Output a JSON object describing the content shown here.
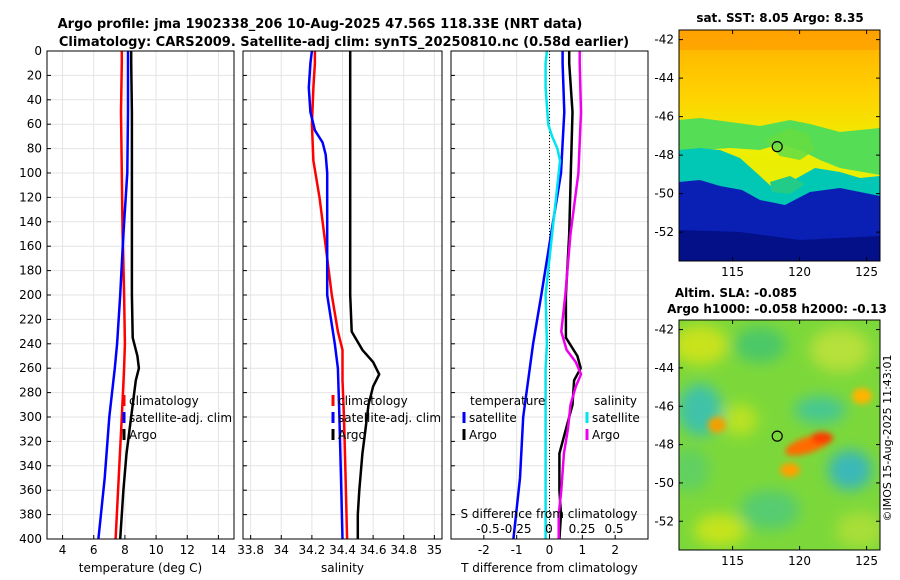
{
  "title_line1": "Argo profile: jma 1902338_206 10-Aug-2025 47.56S 118.33E (NRT data)",
  "title_line2": "Climatology: CARS2009. Satellite-adj clim: synTS_20250810.nc (0.58d earlier)",
  "watermark": "©IMOS 15-Aug-2025 11:43:01",
  "colors": {
    "climatology": "#ff0000",
    "satellite": "#0000ff",
    "argo": "#000000",
    "sal_satellite": "#00e5ee",
    "sal_argo": "#ee00ee"
  },
  "chart_data": [
    {
      "type": "line",
      "title": "",
      "xlabel": "temperature (deg C)",
      "ylabel": "",
      "xlim": [
        3,
        15
      ],
      "ylim": [
        400,
        0
      ],
      "xticks": [
        "4",
        "6",
        "8",
        "10",
        "12",
        "14"
      ],
      "yticks": [
        "0",
        "20",
        "40",
        "60",
        "80",
        "100",
        "120",
        "140",
        "160",
        "180",
        "200",
        "220",
        "240",
        "260",
        "280",
        "300",
        "320",
        "340",
        "360",
        "380",
        "400"
      ],
      "legend": [
        "climatology",
        "satellite-adj. clim",
        "Argo"
      ],
      "series": [
        {
          "name": "climatology",
          "depth": [
            0,
            10,
            50,
            100,
            150,
            200,
            240,
            260,
            300,
            350,
            400
          ],
          "values": [
            7.8,
            7.8,
            7.75,
            7.8,
            7.85,
            7.95,
            8.0,
            7.95,
            7.8,
            7.6,
            7.4
          ]
        },
        {
          "name": "satellite-adj. clim",
          "depth": [
            0,
            10,
            50,
            100,
            150,
            200,
            240,
            260,
            300,
            350,
            400
          ],
          "values": [
            8.2,
            8.2,
            8.2,
            8.15,
            7.9,
            7.7,
            7.5,
            7.35,
            7.0,
            6.7,
            6.3
          ]
        },
        {
          "name": "Argo",
          "depth": [
            0,
            10,
            50,
            100,
            150,
            200,
            235,
            250,
            260,
            270,
            290,
            310,
            330,
            360,
            380,
            400
          ],
          "values": [
            8.4,
            8.4,
            8.45,
            8.45,
            8.45,
            8.45,
            8.5,
            8.8,
            8.9,
            8.7,
            8.5,
            8.3,
            8.1,
            7.9,
            7.8,
            7.7
          ]
        }
      ]
    },
    {
      "type": "line",
      "title": "",
      "xlabel": "salinity",
      "ylabel": "",
      "xlim": [
        33.75,
        35.05
      ],
      "ylim": [
        400,
        0
      ],
      "xticks": [
        "33.8",
        "34",
        "34.2",
        "34.4",
        "34.6",
        "34.8",
        "35"
      ],
      "legend": [
        "climatology",
        "satellite-adj. clim",
        "Argo"
      ],
      "series": [
        {
          "name": "climatology",
          "depth": [
            0,
            10,
            30,
            60,
            90,
            120,
            160,
            200,
            230,
            245,
            270,
            300,
            350,
            400
          ],
          "values": [
            34.22,
            34.22,
            34.21,
            34.2,
            34.21,
            34.25,
            34.29,
            34.33,
            34.37,
            34.4,
            34.4,
            34.41,
            34.42,
            34.43
          ]
        },
        {
          "name": "satellite-adj. clim",
          "depth": [
            0,
            10,
            30,
            50,
            65,
            75,
            85,
            100,
            120,
            150,
            200,
            240,
            260,
            300,
            350,
            400
          ],
          "values": [
            34.2,
            34.19,
            34.18,
            34.19,
            34.22,
            34.27,
            34.29,
            34.3,
            34.3,
            34.3,
            34.3,
            34.35,
            34.37,
            34.38,
            34.39,
            34.4
          ]
        },
        {
          "name": "Argo",
          "depth": [
            0,
            10,
            50,
            100,
            150,
            200,
            230,
            245,
            255,
            265,
            275,
            290,
            310,
            330,
            360,
            380,
            400
          ],
          "values": [
            34.45,
            34.45,
            34.45,
            34.45,
            34.45,
            34.45,
            34.46,
            34.53,
            34.6,
            34.64,
            34.6,
            34.57,
            34.55,
            34.53,
            34.51,
            34.5,
            34.5
          ]
        }
      ]
    },
    {
      "type": "line",
      "title": "",
      "xlabel": "T difference from climatology",
      "ylabel": "",
      "xlim": [
        -3,
        3
      ],
      "ylim": [
        400,
        0
      ],
      "xticks": [
        "-2",
        "-1",
        "0",
        "1",
        "2"
      ],
      "x2label": "S difference from climatology",
      "x2ticks": [
        "-0.5",
        "-0.25",
        "0",
        "0.25",
        "0.5"
      ],
      "legend_left_title": "temperature",
      "legend_right_title": "salinity",
      "legend_left": [
        "satellite",
        "Argo"
      ],
      "legend_right": [
        "satellite",
        "Argo"
      ],
      "series": [
        {
          "name": "temperature satellite",
          "depth": [
            0,
            10,
            50,
            100,
            150,
            200,
            240,
            260,
            300,
            350,
            400
          ],
          "values": [
            0.4,
            0.4,
            0.45,
            0.35,
            0.05,
            -0.25,
            -0.5,
            -0.6,
            -0.8,
            -0.9,
            -1.1
          ]
        },
        {
          "name": "temperature Argo",
          "depth": [
            0,
            10,
            50,
            100,
            150,
            200,
            235,
            250,
            260,
            270,
            290,
            310,
            330,
            360,
            380,
            400
          ],
          "values": [
            0.6,
            0.6,
            0.7,
            0.65,
            0.6,
            0.5,
            0.5,
            0.85,
            0.95,
            0.75,
            0.7,
            0.5,
            0.3,
            0.3,
            0.35,
            0.3
          ]
        },
        {
          "name": "salinity satellite",
          "depth": [
            0,
            10,
            30,
            60,
            70,
            80,
            90,
            120,
            160,
            200,
            240,
            260,
            300,
            400
          ],
          "values": [
            -0.02,
            -0.03,
            -0.03,
            -0.01,
            0.02,
            0.06,
            0.08,
            0.05,
            0.01,
            -0.03,
            -0.02,
            -0.03,
            -0.03,
            -0.03
          ]
        },
        {
          "name": "salinity Argo",
          "depth": [
            0,
            10,
            50,
            100,
            150,
            200,
            230,
            245,
            255,
            265,
            275,
            290,
            310,
            330,
            360,
            380,
            400
          ],
          "values": [
            0.23,
            0.23,
            0.24,
            0.22,
            0.16,
            0.12,
            0.09,
            0.13,
            0.2,
            0.24,
            0.2,
            0.16,
            0.14,
            0.11,
            0.09,
            0.07,
            0.07
          ]
        }
      ]
    },
    {
      "type": "heatmap",
      "title": "sat. SST: 8.05 Argo: 8.35",
      "xlim": [
        111,
        126
      ],
      "ylim": [
        -53.5,
        -41.5
      ],
      "xticks": [
        "115",
        "120",
        "125"
      ],
      "yticks": [
        "-42",
        "-44",
        "-46",
        "-48",
        "-50",
        "-52"
      ],
      "marker": {
        "lon": 118.33,
        "lat": -47.56
      }
    },
    {
      "type": "heatmap",
      "title": "Altim. SLA: -0.085",
      "subtitle": "Argo h1000: -0.058 h2000: -0.13",
      "xlim": [
        111,
        126
      ],
      "ylim": [
        -53.5,
        -41.5
      ],
      "xticks": [
        "115",
        "120",
        "125"
      ],
      "yticks": [
        "-42",
        "-44",
        "-46",
        "-48",
        "-50",
        "-52"
      ],
      "marker": {
        "lon": 118.33,
        "lat": -47.56
      }
    }
  ]
}
